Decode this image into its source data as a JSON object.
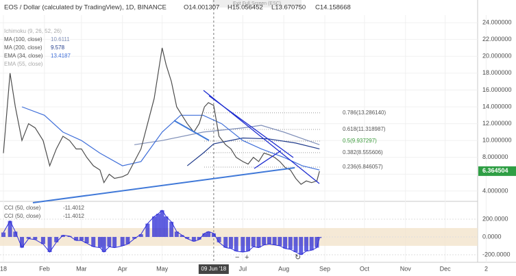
{
  "ui": {
    "exit_label": "Exit Full Screen (ESC)"
  },
  "chart_data": [
    {
      "type": "line",
      "title": "EOS / Dollar (calculated by TradingView), 1D, BINANCE",
      "ohlc": [
        "O14.001307",
        "H15.056452",
        "L13.670750",
        "C14.158668"
      ],
      "indicators_hidden": [
        "Ichimoku (9, 26, 52, 26)",
        "EMA (55, close)"
      ],
      "price_color": "#4c4c4c",
      "x": [
        "2018-01-01",
        "2018-01-06",
        "2018-01-10",
        "2018-01-15",
        "2018-01-20",
        "2018-01-25",
        "2018-01-31",
        "2018-02-05",
        "2018-02-10",
        "2018-02-15",
        "2018-02-20",
        "2018-02-25",
        "2018-03-01",
        "2018-03-05",
        "2018-03-10",
        "2018-03-15",
        "2018-03-18",
        "2018-03-22",
        "2018-03-26",
        "2018-04-01",
        "2018-04-05",
        "2018-04-10",
        "2018-04-15",
        "2018-04-20",
        "2018-04-25",
        "2018-04-28",
        "2018-05-01",
        "2018-05-04",
        "2018-05-08",
        "2018-05-12",
        "2018-05-16",
        "2018-05-20",
        "2018-05-25",
        "2018-05-29",
        "2018-06-02",
        "2018-06-05",
        "2018-06-09",
        "2018-06-13",
        "2018-06-18",
        "2018-06-22",
        "2018-06-26",
        "2018-07-01",
        "2018-07-05",
        "2018-07-09",
        "2018-07-13",
        "2018-07-17",
        "2018-07-21",
        "2018-07-25",
        "2018-07-29",
        "2018-08-02",
        "2018-08-06",
        "2018-08-10",
        "2018-08-14",
        "2018-08-18",
        "2018-08-22",
        "2018-08-26",
        "2018-08-28"
      ],
      "values": [
        8.5,
        18,
        14,
        10,
        12,
        11.5,
        10,
        7,
        9,
        10.5,
        10,
        9,
        9,
        8,
        7,
        6.5,
        5,
        6,
        5.5,
        5.7,
        6,
        7.5,
        9,
        12,
        15,
        18,
        21,
        19,
        17,
        14,
        13,
        12,
        11,
        12,
        14,
        14.5,
        14.16,
        10.5,
        9.5,
        9,
        8,
        7.5,
        7.2,
        8,
        7.5,
        8.5,
        8.3,
        8,
        7.5,
        6.8,
        6.5,
        5.5,
        4.8,
        5.2,
        5,
        5.2,
        6.364504
      ],
      "last_price": 6.364504,
      "series": [
        {
          "name": "MA (100, close)",
          "color": "#7f8fb8",
          "legend_value": 10.6111,
          "x": [
            "2018-04-10",
            "2018-05-01",
            "2018-06-01",
            "2018-07-01",
            "2018-07-15",
            "2018-08-01",
            "2018-08-28"
          ],
          "values": [
            9.5,
            10,
            11,
            11.5,
            11.8,
            11,
            9.5
          ]
        },
        {
          "name": "MA (200, close)",
          "color": "#1f3a8a",
          "legend_value": 9.578,
          "x": [
            "2018-05-20",
            "2018-06-01",
            "2018-06-09",
            "2018-07-01",
            "2018-07-20",
            "2018-08-10",
            "2018-08-28"
          ],
          "values": [
            7,
            8.5,
            9.6,
            10.3,
            10.2,
            9.7,
            9
          ]
        },
        {
          "name": "EMA (34, close)",
          "color": "#3f6fd9",
          "legend_value": 13.4187,
          "x": [
            "2018-01-15",
            "2018-02-01",
            "2018-02-15",
            "2018-03-01",
            "2018-03-15",
            "2018-04-01",
            "2018-04-15",
            "2018-05-01",
            "2018-05-15",
            "2018-06-01",
            "2018-06-15",
            "2018-07-01",
            "2018-07-15",
            "2018-08-01",
            "2018-08-15",
            "2018-08-28"
          ],
          "values": [
            14,
            13,
            11,
            10,
            8.5,
            7,
            7.5,
            11,
            13,
            13,
            12,
            10,
            9,
            8,
            7,
            6.5
          ]
        }
      ],
      "fib_levels": [
        {
          "value": 13.28614,
          "label": "0.786(13.286140)"
        },
        {
          "value": 11.318987,
          "label": "0.618(11.318987)"
        },
        {
          "value": 9.937297,
          "label": "0.5(9.937297)"
        },
        {
          "value": 8.555606,
          "label": "0.382(8.555606)"
        },
        {
          "value": 6.846057,
          "label": "0.236(6.846057)"
        }
      ],
      "ylim": [
        3.1,
        24.9
      ],
      "yticks": [
        {
          "value": 4,
          "label": "4.000000"
        },
        {
          "value": 6,
          "label": "6.000000"
        },
        {
          "value": 8,
          "label": "8.000000"
        },
        {
          "value": 10,
          "label": "10.000000"
        },
        {
          "value": 12,
          "label": "12.000000"
        },
        {
          "value": 14,
          "label": "14.000000"
        },
        {
          "value": 16,
          "label": "16.000000"
        },
        {
          "value": 18,
          "label": "18.000000"
        },
        {
          "value": 20,
          "label": "20.000000"
        },
        {
          "value": 22,
          "label": "22.000000"
        },
        {
          "value": 24,
          "label": "24.000000"
        }
      ],
      "xticks": [
        {
          "value": "2018-01-01",
          "label": "18"
        },
        {
          "value": "2018-02-01",
          "label": "Feb"
        },
        {
          "value": "2018-03-01",
          "label": "Mar"
        },
        {
          "value": "2018-04-01",
          "label": "Apr"
        },
        {
          "value": "2018-05-01",
          "label": "May"
        },
        {
          "value": "2018-07-01",
          "label": "Jul"
        },
        {
          "value": "2018-08-01",
          "label": "Aug"
        },
        {
          "value": "2018-09-01",
          "label": "Sep"
        },
        {
          "value": "2018-10-01",
          "label": "Oct"
        },
        {
          "value": "2018-11-01",
          "label": "Nov"
        },
        {
          "value": "2018-12-01",
          "label": "Dec"
        },
        {
          "value": "2019-01-01",
          "label": "2"
        }
      ],
      "crosshair": {
        "x": "2018-06-09",
        "label": "09 Jun '18"
      },
      "grid": true
    },
    {
      "type": "bar",
      "legend": [
        "CCI (50, close)",
        "CCI (50, close)"
      ],
      "legend_value": -11.4012,
      "color": "#2b2bd6",
      "band": [
        -100,
        100
      ],
      "x": [
        "2018-01-01",
        "2018-01-06",
        "2018-01-10",
        "2018-01-15",
        "2018-01-20",
        "2018-01-25",
        "2018-01-31",
        "2018-02-05",
        "2018-02-10",
        "2018-02-15",
        "2018-02-20",
        "2018-02-25",
        "2018-03-01",
        "2018-03-05",
        "2018-03-10",
        "2018-03-15",
        "2018-03-18",
        "2018-03-22",
        "2018-03-26",
        "2018-04-01",
        "2018-04-05",
        "2018-04-10",
        "2018-04-15",
        "2018-04-20",
        "2018-04-25",
        "2018-04-28",
        "2018-05-01",
        "2018-05-04",
        "2018-05-08",
        "2018-05-12",
        "2018-05-16",
        "2018-05-20",
        "2018-05-25",
        "2018-05-29",
        "2018-06-02",
        "2018-06-05",
        "2018-06-09",
        "2018-06-13",
        "2018-06-18",
        "2018-06-22",
        "2018-06-26",
        "2018-07-01",
        "2018-07-05",
        "2018-07-09",
        "2018-07-13",
        "2018-07-17",
        "2018-07-21",
        "2018-07-25",
        "2018-07-29",
        "2018-08-02",
        "2018-08-06",
        "2018-08-10",
        "2018-08-14",
        "2018-08-18",
        "2018-08-22",
        "2018-08-26",
        "2018-08-28"
      ],
      "values": [
        50,
        180,
        60,
        -120,
        -20,
        -30,
        -80,
        -170,
        -60,
        20,
        10,
        -40,
        -40,
        -70,
        -110,
        -120,
        -170,
        -110,
        -120,
        -100,
        -80,
        -20,
        30,
        150,
        230,
        260,
        300,
        230,
        170,
        60,
        20,
        -20,
        -50,
        -30,
        40,
        60,
        40,
        -60,
        -120,
        -130,
        -160,
        -170,
        -160,
        -110,
        -120,
        -90,
        -80,
        -90,
        -100,
        -130,
        -140,
        -170,
        -200,
        -160,
        -150,
        -120,
        -11.4012
      ],
      "ylim": [
        -262,
        377
      ],
      "yticks": [
        {
          "value": 200,
          "label": "200.0000"
        },
        {
          "value": 0,
          "label": "0.0000"
        },
        {
          "value": -200,
          "label": "-200.0000"
        }
      ]
    }
  ]
}
